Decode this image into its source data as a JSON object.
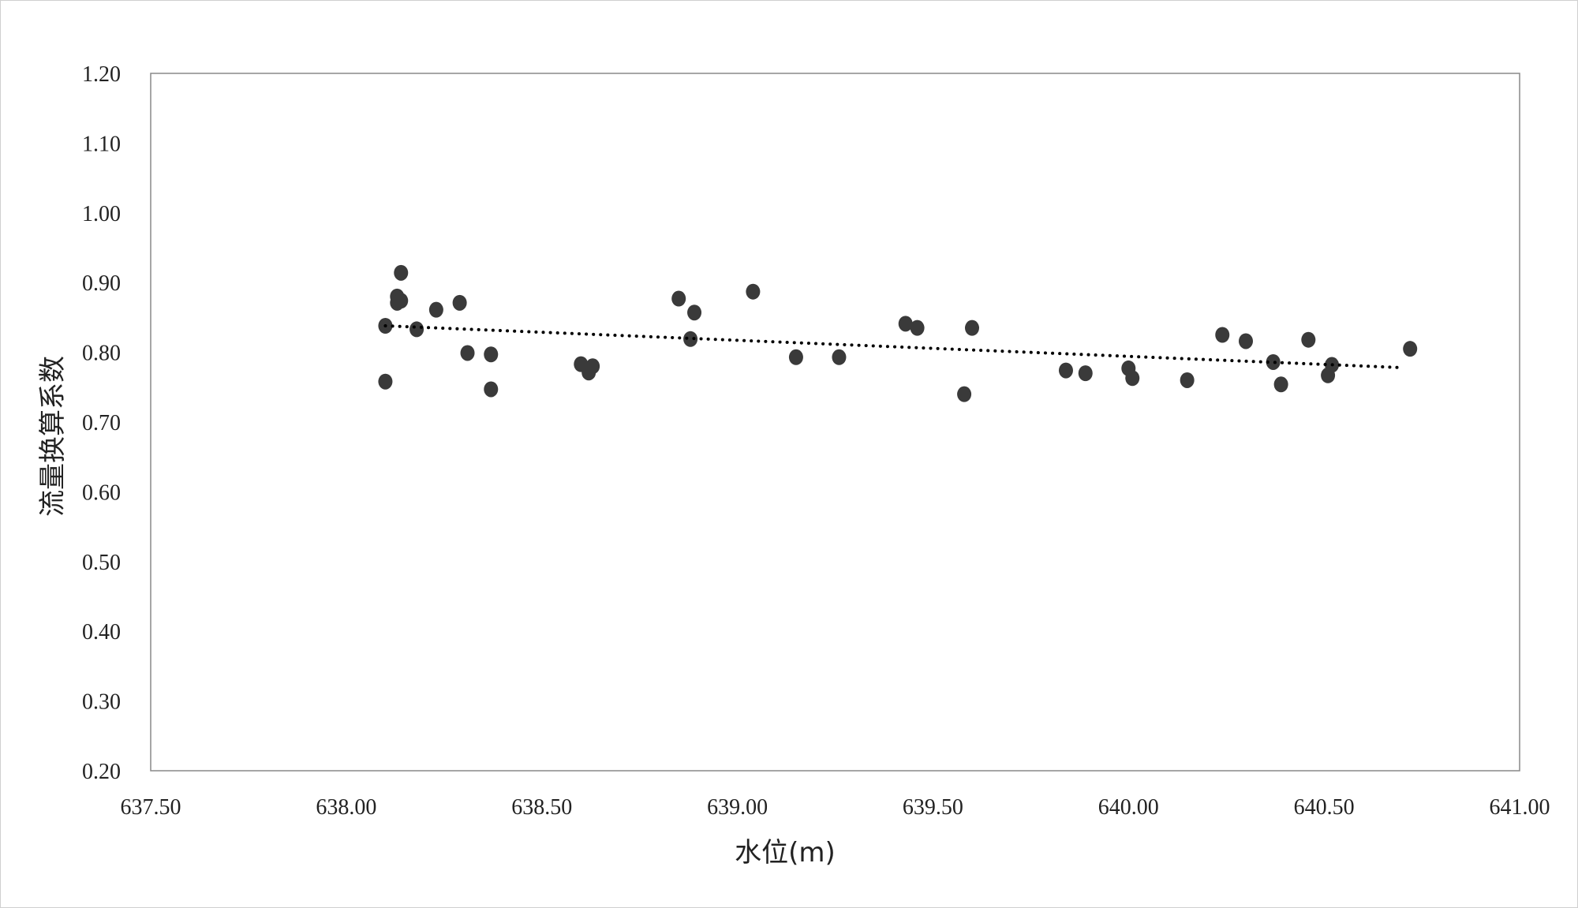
{
  "chart_data": {
    "type": "scatter",
    "title": "",
    "xlabel": "水位(m)",
    "ylabel": "流量换算系数",
    "xlim": [
      637.5,
      641.0
    ],
    "ylim": [
      0.2,
      1.2
    ],
    "xticks": [
      "637.50",
      "638.00",
      "638.50",
      "639.00",
      "639.50",
      "640.00",
      "640.50",
      "641.00"
    ],
    "yticks": [
      "0.20",
      "0.30",
      "0.40",
      "0.50",
      "0.60",
      "0.70",
      "0.80",
      "0.90",
      "1.00",
      "1.10",
      "1.20"
    ],
    "grid": false,
    "legend": "none",
    "marker_color": "#3a3a3a",
    "trendline": {
      "type": "linear",
      "style": "dotted",
      "color": "#000000",
      "x": [
        638.1,
        640.7
      ],
      "y": [
        0.838,
        0.778
      ]
    },
    "points": [
      [
        638.1,
        0.838
      ],
      [
        638.1,
        0.758
      ],
      [
        638.13,
        0.88
      ],
      [
        638.13,
        0.871
      ],
      [
        638.14,
        0.874
      ],
      [
        638.14,
        0.914
      ],
      [
        638.18,
        0.833
      ],
      [
        638.23,
        0.861
      ],
      [
        638.29,
        0.871
      ],
      [
        638.31,
        0.799
      ],
      [
        638.37,
        0.797
      ],
      [
        638.37,
        0.747
      ],
      [
        638.6,
        0.783
      ],
      [
        638.62,
        0.771
      ],
      [
        638.63,
        0.78
      ],
      [
        638.85,
        0.877
      ],
      [
        638.89,
        0.857
      ],
      [
        638.88,
        0.819
      ],
      [
        639.04,
        0.887
      ],
      [
        639.15,
        0.793
      ],
      [
        639.26,
        0.793
      ],
      [
        639.43,
        0.841
      ],
      [
        639.46,
        0.835
      ],
      [
        639.6,
        0.835
      ],
      [
        639.58,
        0.74
      ],
      [
        639.84,
        0.774
      ],
      [
        639.89,
        0.77
      ],
      [
        640.0,
        0.777
      ],
      [
        640.01,
        0.763
      ],
      [
        640.15,
        0.76
      ],
      [
        640.24,
        0.825
      ],
      [
        640.3,
        0.816
      ],
      [
        640.37,
        0.786
      ],
      [
        640.39,
        0.754
      ],
      [
        640.46,
        0.818
      ],
      [
        640.51,
        0.767
      ],
      [
        640.52,
        0.782
      ],
      [
        640.72,
        0.805
      ]
    ]
  }
}
